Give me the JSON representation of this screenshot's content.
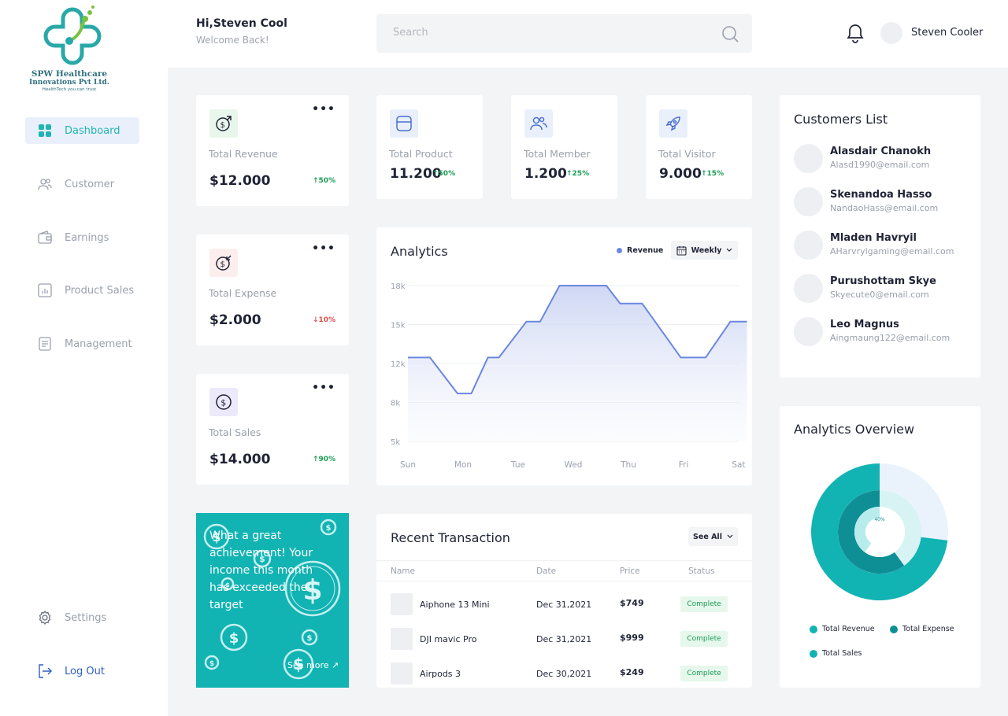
{
  "brand": {
    "line1": "SPW Healthcare",
    "line2": "Innovations Pvt Ltd.",
    "tagline": "HealthTech you can trust",
    "color": "#2aa8a8"
  },
  "sidebar": {
    "items": [
      {
        "label": "Dashboard",
        "icon": "grid-icon",
        "active": true
      },
      {
        "label": "Customer",
        "icon": "users-icon"
      },
      {
        "label": "Earnings",
        "icon": "wallet-icon"
      },
      {
        "label": "Product Sales",
        "icon": "bar-chart-icon"
      },
      {
        "label": "Management",
        "icon": "document-icon"
      }
    ],
    "settings": "Settings",
    "logout": "Log Out"
  },
  "header": {
    "greeting": "Hi,Steven Cool",
    "subgreeting": "Welcome Back!",
    "search_placeholder": "Search",
    "user_name": "Steven Cooler"
  },
  "stats": {
    "revenue": {
      "label": "Total Revenue",
      "value": "$12.000",
      "change": "↑50%"
    },
    "expense": {
      "label": "Total Expense",
      "value": "$2.000",
      "change": "↓10%"
    },
    "sales": {
      "label": "Total Sales",
      "value": "$14.000",
      "change": "↑90%"
    },
    "product": {
      "label": "Total Product",
      "value": "11.200",
      "change": "↑50%"
    },
    "member": {
      "label": "Total Member",
      "value": "1.200",
      "change": "↑25%"
    },
    "visitor": {
      "label": "Total Visitor",
      "value": "9.000",
      "change": "↑15%"
    }
  },
  "promo": {
    "text": "What a great achievement! Your income this month has exceeded the target",
    "link": "See more ↗"
  },
  "analytics": {
    "title": "Analytics",
    "legend": "Revenue",
    "period": "Weekly"
  },
  "chart_data": {
    "type": "area",
    "title": "Analytics",
    "x": [
      "Sun",
      "Mon",
      "Tue",
      "Wed",
      "Thu",
      "Fri",
      "Sat"
    ],
    "y_ticks": [
      "18k",
      "15k",
      "12k",
      "8k",
      "5k"
    ],
    "ylim": [
      5,
      18
    ],
    "series": [
      {
        "name": "Revenue",
        "points": [
          [
            0,
            12
          ],
          [
            0.4,
            12
          ],
          [
            0.9,
            9
          ],
          [
            1.15,
            9
          ],
          [
            1.45,
            12
          ],
          [
            1.65,
            12
          ],
          [
            2.15,
            15
          ],
          [
            2.4,
            15
          ],
          [
            2.75,
            18
          ],
          [
            3.6,
            18
          ],
          [
            3.85,
            16.5
          ],
          [
            4.25,
            16.5
          ],
          [
            4.95,
            12
          ],
          [
            5.4,
            12
          ],
          [
            5.85,
            15
          ],
          [
            6.15,
            15
          ]
        ]
      }
    ],
    "color": "#6b87df",
    "grid": true
  },
  "transactions": {
    "title": "Recent Transaction",
    "see_all": "See All",
    "headers": [
      "Name",
      "Date",
      "Price",
      "Status"
    ],
    "rows": [
      {
        "name": "Aiphone 13 Mini",
        "date": "Dec 31,2021",
        "price": "$749",
        "status": "Complete"
      },
      {
        "name": "DJI mavic Pro",
        "date": "Dec 31,2021",
        "price": "$999",
        "status": "Complete"
      },
      {
        "name": "Airpods 3",
        "date": "Dec 30,2021",
        "price": "$249",
        "status": "Complete"
      }
    ]
  },
  "customers": {
    "title": "Customers List",
    "items": [
      {
        "name": "Alasdair Chanokh",
        "email": "Alasd1990@email.com"
      },
      {
        "name": "Skenandoa Hasso",
        "email": "NandaoHass@email.com"
      },
      {
        "name": "Mladen Havryil",
        "email": "AHarvrylgaming@email.com"
      },
      {
        "name": "Purushottam Skye",
        "email": "Skyecute0@email.com"
      },
      {
        "name": "Leo Magnus",
        "email": "Aingmaung122@email.com"
      }
    ]
  },
  "overview": {
    "title": "Analytics Overview",
    "rings": [
      {
        "name": "Total Revenue",
        "percent": 73,
        "label": "73%",
        "color": "#12b3b3"
      },
      {
        "name": "Total Expense",
        "percent": 60,
        "label": "60%",
        "color": "#0e8f95"
      },
      {
        "name": "Total Sales",
        "percent": 40,
        "label": "40%",
        "color": "#b8ecec"
      }
    ],
    "legend": [
      "Total Revenue",
      "Total Expense",
      "Total Sales"
    ]
  }
}
